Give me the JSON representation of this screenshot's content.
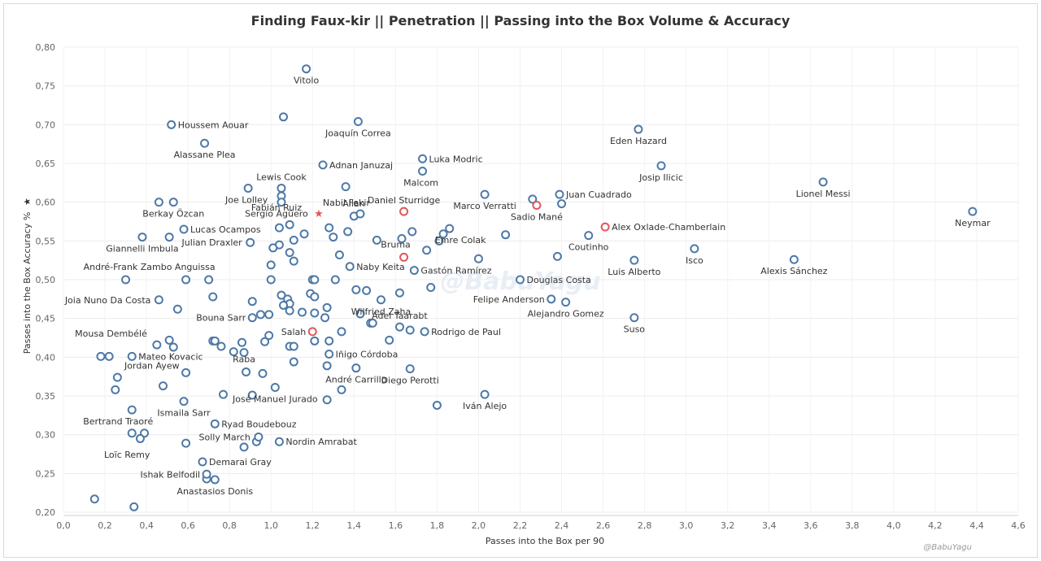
{
  "chart_data": {
    "type": "scatter",
    "title": "Finding Faux-kir  ||  Penetration  ||  Passing into the Box Volume & Accuracy",
    "xlabel": "Passes into the Box per 90",
    "ylabel": "Passes into the Box Accuracy %",
    "ylabel_icon": "★",
    "xlim": [
      0.0,
      4.6
    ],
    "ylim": [
      0.2,
      0.8
    ],
    "x_ticks": [
      "0,0",
      "0,2",
      "0,4",
      "0,6",
      "0,8",
      "1,0",
      "1,2",
      "1,4",
      "1,6",
      "1,8",
      "2,0",
      "2,2",
      "2,4",
      "2,6",
      "2,8",
      "3,0",
      "3,2",
      "3,4",
      "3,6",
      "3,8",
      "4,0",
      "4,2",
      "4,4",
      "4,6"
    ],
    "y_ticks": [
      "0,20",
      "0,25",
      "0,30",
      "0,35",
      "0,40",
      "0,45",
      "0,50",
      "0,55",
      "0,60",
      "0,65",
      "0,70",
      "0,75",
      "0,80"
    ],
    "grid": true,
    "colors": {
      "default": "#4e79a7",
      "highlight": "#e15759"
    },
    "watermark": "@BabuYagu",
    "credit": "@BabuYagu",
    "labeled_points": [
      {
        "name": "Vitolo",
        "x": 1.17,
        "y": 0.772
      },
      {
        "name": "Houssem Aouar",
        "x": 0.52,
        "y": 0.7
      },
      {
        "name": "Joaquín Correa",
        "x": 1.42,
        "y": 0.704
      },
      {
        "name": "Eden Hazard",
        "x": 2.77,
        "y": 0.694
      },
      {
        "name": "Alassane Plea",
        "x": 0.68,
        "y": 0.676
      },
      {
        "name": "Adnan Januzaj",
        "x": 1.25,
        "y": 0.648
      },
      {
        "name": "Luka Modric",
        "x": 1.73,
        "y": 0.656
      },
      {
        "name": "Josip Ilicic",
        "x": 2.88,
        "y": 0.647
      },
      {
        "name": "Malcom",
        "x": 1.73,
        "y": 0.64
      },
      {
        "name": "Lewis Cook",
        "x": 1.05,
        "y": 0.618
      },
      {
        "name": "Lionel Messi",
        "x": 3.66,
        "y": 0.626
      },
      {
        "name": "Joe Lolley",
        "x": 0.89,
        "y": 0.618
      },
      {
        "name": "Juan Cuadrado",
        "x": 2.39,
        "y": 0.61
      },
      {
        "name": "Allan",
        "x": 1.43,
        "y": 0.585
      },
      {
        "name": "Daniel Sturridge",
        "x": 1.64,
        "y": 0.588,
        "hl": true
      },
      {
        "name": "Nabil Fekir",
        "x": 1.23,
        "y": 0.586,
        "star": true
      },
      {
        "name": "Marco Verratti",
        "x": 2.03,
        "y": 0.61
      },
      {
        "name": "Fabián Ruiz",
        "x": 1.05,
        "y": 0.608
      },
      {
        "name": "Sergio Agüero",
        "x": 1.05,
        "y": 0.6
      },
      {
        "name": "Berkay Özcan",
        "x": 0.53,
        "y": 0.6
      },
      {
        "name": "Sadio Mané",
        "x": 2.28,
        "y": 0.596,
        "hl": true
      },
      {
        "name": "Neymar",
        "x": 4.38,
        "y": 0.588
      },
      {
        "name": "Alex Oxlade-Chamberlain",
        "x": 2.61,
        "y": 0.568,
        "hl": true
      },
      {
        "name": "Lucas Ocampos",
        "x": 0.58,
        "y": 0.565
      },
      {
        "name": "Emre Colak",
        "x": 1.86,
        "y": 0.566
      },
      {
        "name": "Giannelli Imbula",
        "x": 0.38,
        "y": 0.555
      },
      {
        "name": "Julian Draxler",
        "x": 0.9,
        "y": 0.548
      },
      {
        "name": "Coutinho",
        "x": 2.53,
        "y": 0.557
      },
      {
        "name": "Isco",
        "x": 3.04,
        "y": 0.54
      },
      {
        "name": "Bruma",
        "x": 1.64,
        "y": 0.529,
        "hl": true
      },
      {
        "name": "Luis Alberto",
        "x": 2.75,
        "y": 0.525
      },
      {
        "name": "Alexis Sánchez",
        "x": 3.52,
        "y": 0.526
      },
      {
        "name": "Naby Keita",
        "x": 1.38,
        "y": 0.517
      },
      {
        "name": "Gastón Ramírez",
        "x": 1.69,
        "y": 0.512
      },
      {
        "name": "André-Frank Zambo Anguissa",
        "x": 0.7,
        "y": 0.5
      },
      {
        "name": "Douglas Costa",
        "x": 2.2,
        "y": 0.5
      },
      {
        "name": "Joia Nuno Da Costa",
        "x": 0.46,
        "y": 0.474
      },
      {
        "name": "Felipe Anderson",
        "x": 2.35,
        "y": 0.475
      },
      {
        "name": "Wilfried Zaha",
        "x": 1.53,
        "y": 0.474
      },
      {
        "name": "Alejandro Gomez",
        "x": 2.42,
        "y": 0.471
      },
      {
        "name": "Bouna Sarr",
        "x": 0.91,
        "y": 0.451
      },
      {
        "name": "Adel Taarabt",
        "x": 1.62,
        "y": 0.439
      },
      {
        "name": "Suso",
        "x": 2.75,
        "y": 0.451
      },
      {
        "name": "Salah",
        "x": 1.2,
        "y": 0.433,
        "hl": true
      },
      {
        "name": "Rodrigo de Paul",
        "x": 1.74,
        "y": 0.433
      },
      {
        "name": "Mousa Dembélé",
        "x": 0.45,
        "y": 0.416
      },
      {
        "name": "Mateo Kovacic",
        "x": 0.33,
        "y": 0.401
      },
      {
        "name": "Iñigo Córdoba",
        "x": 1.28,
        "y": 0.404
      },
      {
        "name": "Raba",
        "x": 0.87,
        "y": 0.406
      },
      {
        "name": "Jordan Ayew",
        "x": 0.59,
        "y": 0.38
      },
      {
        "name": "André Carrillo",
        "x": 1.41,
        "y": 0.386
      },
      {
        "name": "Diego Perotti",
        "x": 1.67,
        "y": 0.385
      },
      {
        "name": "José Manuel Jurado",
        "x": 1.02,
        "y": 0.361
      },
      {
        "name": "Iván Alejo",
        "x": 2.03,
        "y": 0.352
      },
      {
        "name": "Ismaila Sarr",
        "x": 0.58,
        "y": 0.343
      },
      {
        "name": "Bertrand Traoré",
        "x": 0.33,
        "y": 0.332
      },
      {
        "name": "Ryad Boudebouz",
        "x": 0.73,
        "y": 0.314
      },
      {
        "name": "Solly March",
        "x": 0.94,
        "y": 0.297
      },
      {
        "name": "Nordin Amrabat",
        "x": 1.04,
        "y": 0.291
      },
      {
        "name": "Loïc Remy",
        "x": 0.33,
        "y": 0.302
      },
      {
        "name": "Demarai Gray",
        "x": 0.67,
        "y": 0.265
      },
      {
        "name": "Ishak Belfodil",
        "x": 0.69,
        "y": 0.249
      },
      {
        "name": "Anastasios Donis",
        "x": 0.73,
        "y": 0.242
      }
    ],
    "other_points": [
      [
        1.06,
        0.71
      ],
      [
        0.46,
        0.6
      ],
      [
        1.36,
        0.62
      ],
      [
        2.26,
        0.604
      ],
      [
        2.4,
        0.598
      ],
      [
        1.04,
        0.567
      ],
      [
        1.09,
        0.571
      ],
      [
        1.16,
        0.559
      ],
      [
        1.11,
        0.551
      ],
      [
        1.04,
        0.545
      ],
      [
        1.01,
        0.541
      ],
      [
        1.09,
        0.535
      ],
      [
        1.11,
        0.524
      ],
      [
        1.28,
        0.567
      ],
      [
        1.3,
        0.555
      ],
      [
        1.37,
        0.562
      ],
      [
        1.33,
        0.532
      ],
      [
        1.4,
        0.582
      ],
      [
        1.51,
        0.551
      ],
      [
        1.63,
        0.553
      ],
      [
        1.68,
        0.562
      ],
      [
        1.81,
        0.55
      ],
      [
        1.83,
        0.559
      ],
      [
        1.75,
        0.538
      ],
      [
        2.0,
        0.527
      ],
      [
        2.13,
        0.558
      ],
      [
        2.38,
        0.53
      ],
      [
        0.51,
        0.555
      ],
      [
        0.3,
        0.5
      ],
      [
        0.59,
        0.5
      ],
      [
        1.0,
        0.519
      ],
      [
        1.0,
        0.5
      ],
      [
        1.2,
        0.5
      ],
      [
        1.21,
        0.5
      ],
      [
        1.31,
        0.5
      ],
      [
        1.77,
        0.49
      ],
      [
        1.62,
        0.483
      ],
      [
        1.46,
        0.486
      ],
      [
        1.41,
        0.487
      ],
      [
        0.72,
        0.478
      ],
      [
        1.05,
        0.48
      ],
      [
        1.08,
        0.475
      ],
      [
        1.09,
        0.469
      ],
      [
        1.19,
        0.482
      ],
      [
        1.21,
        0.478
      ],
      [
        0.55,
        0.462
      ],
      [
        1.06,
        0.467
      ],
      [
        1.09,
        0.46
      ],
      [
        1.15,
        0.458
      ],
      [
        1.21,
        0.457
      ],
      [
        1.27,
        0.464
      ],
      [
        1.26,
        0.451
      ],
      [
        1.43,
        0.456
      ],
      [
        1.48,
        0.444
      ],
      [
        1.49,
        0.444
      ],
      [
        0.95,
        0.455
      ],
      [
        0.99,
        0.455
      ],
      [
        0.91,
        0.472
      ],
      [
        0.51,
        0.422
      ],
      [
        0.53,
        0.413
      ],
      [
        0.72,
        0.421
      ],
      [
        0.73,
        0.421
      ],
      [
        0.76,
        0.414
      ],
      [
        0.86,
        0.419
      ],
      [
        0.97,
        0.42
      ],
      [
        0.99,
        0.428
      ],
      [
        1.09,
        0.414
      ],
      [
        1.11,
        0.414
      ],
      [
        1.21,
        0.421
      ],
      [
        1.28,
        0.421
      ],
      [
        1.34,
        0.433
      ],
      [
        1.57,
        0.422
      ],
      [
        1.67,
        0.435
      ],
      [
        0.18,
        0.401
      ],
      [
        0.22,
        0.401
      ],
      [
        0.82,
        0.407
      ],
      [
        0.88,
        0.381
      ],
      [
        0.96,
        0.379
      ],
      [
        1.11,
        0.394
      ],
      [
        1.27,
        0.389
      ],
      [
        0.26,
        0.374
      ],
      [
        0.25,
        0.358
      ],
      [
        0.48,
        0.363
      ],
      [
        0.77,
        0.352
      ],
      [
        0.91,
        0.351
      ],
      [
        1.27,
        0.345
      ],
      [
        1.34,
        0.358
      ],
      [
        1.8,
        0.338
      ],
      [
        0.39,
        0.302
      ],
      [
        0.37,
        0.295
      ],
      [
        0.59,
        0.289
      ],
      [
        0.87,
        0.284
      ],
      [
        0.93,
        0.291
      ],
      [
        0.69,
        0.243
      ],
      [
        0.15,
        0.217
      ],
      [
        0.34,
        0.207
      ]
    ]
  }
}
